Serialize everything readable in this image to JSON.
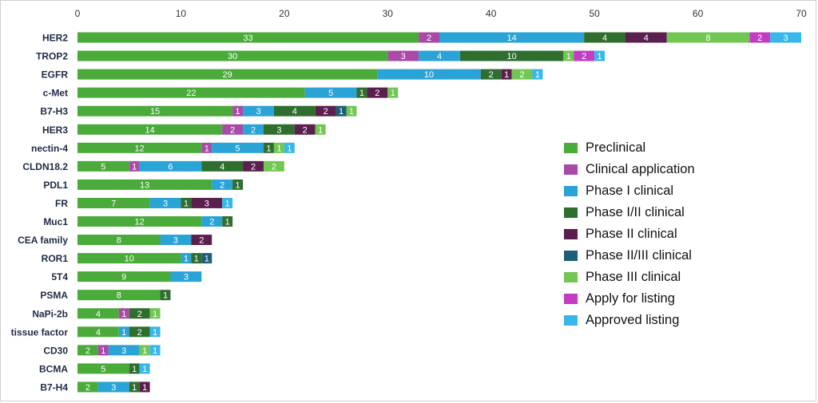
{
  "chart_data": {
    "type": "bar",
    "orientation": "horizontal",
    "stacked": true,
    "title": "",
    "xlabel": "",
    "ylabel": "",
    "xlim": [
      0,
      70
    ],
    "xticks": [
      0,
      10,
      20,
      30,
      40,
      50,
      60,
      70
    ],
    "xaxis_position": "top",
    "grid": false,
    "legend_position": "right",
    "categories": [
      "HER2",
      "TROP2",
      "EGFR",
      "c-Met",
      "B7-H3",
      "HER3",
      "nectin-4",
      "CLDN18.2",
      "PDL1",
      "FR",
      "Muc1",
      "CEA family",
      "ROR1",
      "5T4",
      "PSMA",
      "NaPi-2b",
      "tissue factor",
      "CD30",
      "BCMA",
      "B7-H4"
    ],
    "series": [
      {
        "name": "Preclinical",
        "color": "#4aaa3a",
        "values": [
          33,
          30,
          29,
          22,
          15,
          14,
          12,
          5,
          13,
          7,
          12,
          8,
          10,
          9,
          8,
          4,
          4,
          2,
          5,
          2
        ]
      },
      {
        "name": "Clinical application",
        "color": "#a94ba6",
        "values": [
          2,
          3,
          0,
          0,
          1,
          2,
          1,
          1,
          0,
          0,
          0,
          0,
          0,
          0,
          0,
          1,
          0,
          1,
          0,
          0
        ]
      },
      {
        "name": "Phase I clinical",
        "color": "#2aa3d6",
        "values": [
          14,
          4,
          10,
          5,
          3,
          2,
          5,
          6,
          2,
          3,
          2,
          3,
          1,
          3,
          0,
          0,
          1,
          3,
          0,
          3
        ]
      },
      {
        "name": "Phase I/II clinical",
        "color": "#2f6e2e",
        "values": [
          4,
          10,
          2,
          1,
          4,
          3,
          1,
          4,
          1,
          1,
          1,
          0,
          1,
          0,
          1,
          2,
          2,
          0,
          1,
          1
        ]
      },
      {
        "name": "Phase II clinical",
        "color": "#5b1f4e",
        "values": [
          4,
          0,
          1,
          2,
          2,
          2,
          0,
          2,
          0,
          3,
          0,
          2,
          0,
          0,
          0,
          0,
          0,
          0,
          0,
          1
        ]
      },
      {
        "name": "Phase II/III clinical",
        "color": "#1d5e78",
        "values": [
          0,
          0,
          0,
          0,
          1,
          0,
          0,
          0,
          0,
          0,
          0,
          0,
          1,
          0,
          0,
          0,
          0,
          0,
          0,
          0
        ]
      },
      {
        "name": "Phase III clinical",
        "color": "#72c653",
        "values": [
          8,
          1,
          2,
          1,
          1,
          1,
          1,
          2,
          0,
          0,
          0,
          0,
          0,
          0,
          0,
          1,
          0,
          1,
          0,
          0
        ]
      },
      {
        "name": "Apply for listing",
        "color": "#c23dc2",
        "values": [
          2,
          2,
          0,
          0,
          0,
          0,
          0,
          0,
          0,
          0,
          0,
          0,
          0,
          0,
          0,
          0,
          0,
          0,
          0,
          0
        ]
      },
      {
        "name": "Approved listing",
        "color": "#38b8ea",
        "values": [
          3,
          1,
          1,
          0,
          0,
          0,
          1,
          0,
          0,
          1,
          0,
          0,
          0,
          0,
          0,
          0,
          1,
          1,
          1,
          0
        ]
      }
    ]
  }
}
